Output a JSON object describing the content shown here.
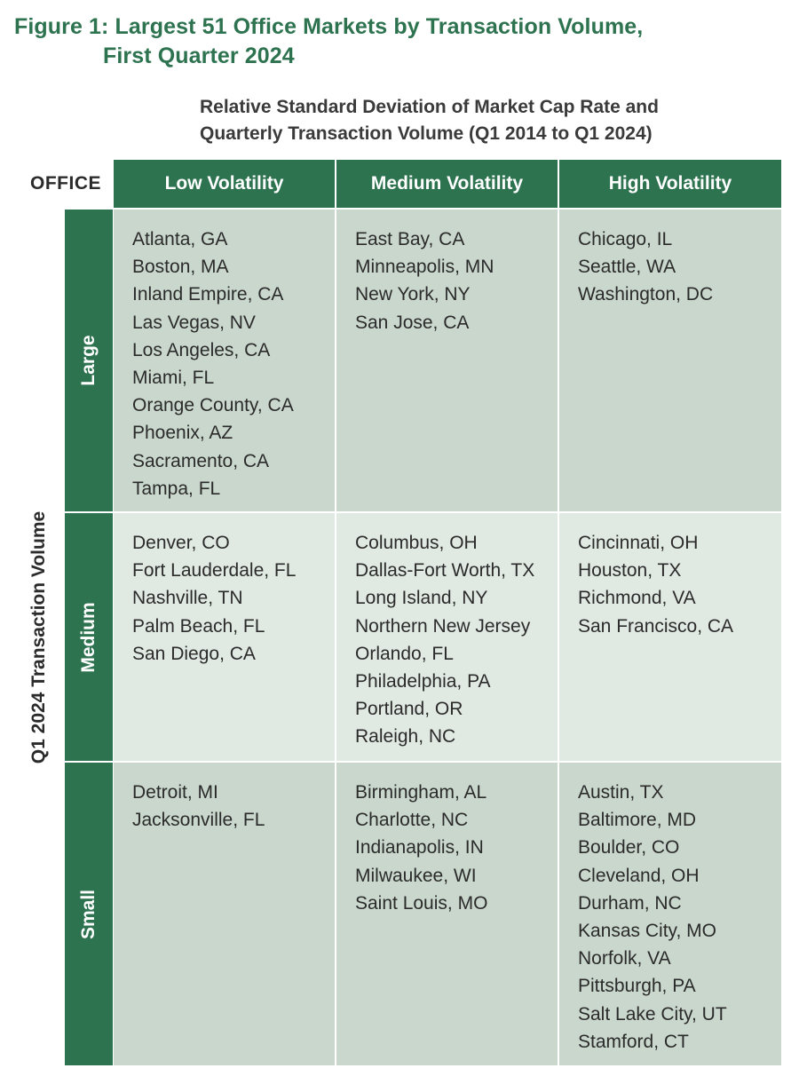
{
  "figure": {
    "title_line1": "Figure 1: Largest 51 Office Markets by Transaction Volume,",
    "title_line2": "First Quarter 2024"
  },
  "subtitle": {
    "line1": "Relative Standard Deviation of Market Cap Rate and",
    "line2": "Quarterly Transaction Volume (Q1 2014 to Q1 2024)"
  },
  "corner_label": "OFFICE",
  "row_axis_label": "Q1 2024 Transaction Volume",
  "columns": [
    "Low Volatility",
    "Medium Volatility",
    "High Volatility"
  ],
  "rows": [
    {
      "label": "Large",
      "cells": [
        [
          "Atlanta, GA",
          "Boston, MA",
          "Inland Empire, CA",
          "Las Vegas, NV",
          "Los Angeles, CA",
          "Miami, FL",
          "Orange County, CA",
          "Phoenix, AZ",
          "Sacramento, CA",
          "Tampa, FL"
        ],
        [
          "East Bay, CA",
          "Minneapolis, MN",
          "New York, NY",
          "San Jose, CA"
        ],
        [
          "Chicago, IL",
          "Seattle, WA",
          "Washington, DC"
        ]
      ]
    },
    {
      "label": "Medium",
      "cells": [
        [
          "Denver, CO",
          "Fort Lauderdale, FL",
          "Nashville, TN",
          "Palm Beach, FL",
          "San Diego, CA"
        ],
        [
          "Columbus, OH",
          "Dallas-Fort Worth, TX",
          "Long Island, NY",
          "Northern New Jersey",
          "Orlando, FL",
          "Philadelphia, PA",
          "Portland, OR",
          "Raleigh, NC"
        ],
        [
          "Cincinnati, OH",
          "Houston, TX",
          "Richmond, VA",
          "San Francisco, CA"
        ]
      ]
    },
    {
      "label": "Small",
      "cells": [
        [
          "Detroit, MI",
          "Jacksonville, FL"
        ],
        [
          "Birmingham, AL",
          "Charlotte, NC",
          "Indianapolis, IN",
          "Milwaukee, WI",
          "Saint Louis, MO"
        ],
        [
          "Austin, TX",
          "Baltimore, MD",
          "Boulder, CO",
          "Cleveland, OH",
          "Durham, NC",
          "Kansas City, MO",
          "Norfolk, VA",
          "Pittsburgh, PA",
          "Salt Lake City, UT",
          "Stamford, CT"
        ]
      ]
    }
  ],
  "colors": {
    "title": "#2e7350",
    "header_bg": "#2e7350",
    "header_text": "#ffffff",
    "cell_dark": "#c9d7cd",
    "cell_light": "#e1e9e3"
  }
}
